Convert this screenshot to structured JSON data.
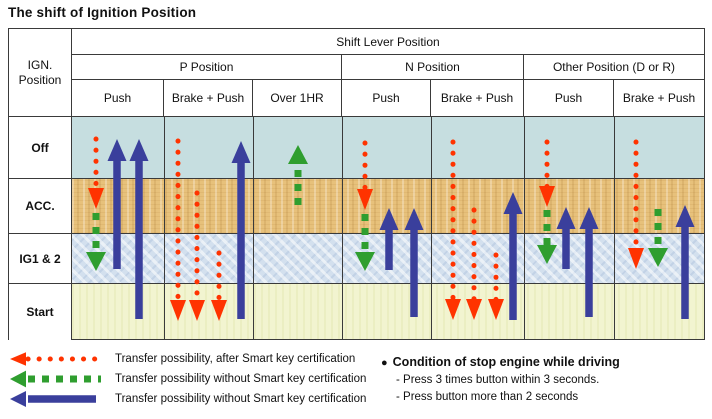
{
  "title": "The shift of Ignition Position",
  "table": {
    "corner": [
      "IGN.",
      "Position"
    ],
    "top_header": "Shift Lever Position",
    "groups": [
      {
        "label": "P Position",
        "subs": [
          "Push",
          "Brake + Push",
          "Over 1HR"
        ]
      },
      {
        "label": "N Position",
        "subs": [
          "Push",
          "Brake + Push"
        ]
      },
      {
        "label": "Other Position (D or R)",
        "subs": [
          "Push",
          "Brake + Push"
        ]
      }
    ],
    "rows": [
      {
        "label": "Off",
        "color": "#c6dee0"
      },
      {
        "label": "ACC.",
        "color": "#e7c17b"
      },
      {
        "label": "IG1 & 2",
        "color": "#d3e0ee"
      },
      {
        "label": "Start",
        "color": "#f2f4d0"
      }
    ]
  },
  "colors": {
    "smart": "#ff3300",
    "no_smart": "#2f9e2f",
    "solid": "#3a3f9c",
    "grid": "#3a3a3a"
  },
  "arrows": [
    {
      "column": "P-Push",
      "items": [
        {
          "kind": "smart",
          "dir": "down",
          "from": "Off",
          "to": "ACC.",
          "x": 24,
          "tail": 22,
          "head": 92
        },
        {
          "kind": "no_smart",
          "dir": "down",
          "from": "ACC.",
          "to": "IG1 & 2",
          "x": 24,
          "tail": 96,
          "head": 154
        },
        {
          "kind": "solid",
          "dir": "up",
          "from": "IG1 & 2",
          "to": "Off",
          "x": 45,
          "tail": 152,
          "head": 22
        },
        {
          "kind": "solid",
          "dir": "up",
          "from": "Start",
          "to": "Off",
          "x": 67,
          "tail": 202,
          "head": 22
        }
      ]
    },
    {
      "column": "P-Brake+Push",
      "items": [
        {
          "kind": "smart",
          "dir": "down",
          "from": "Off",
          "to": "Start",
          "x": 14,
          "tail": 24,
          "head": 204
        },
        {
          "kind": "smart",
          "dir": "down",
          "from": "ACC.",
          "to": "Start",
          "x": 33,
          "tail": 76,
          "head": 204
        },
        {
          "kind": "smart",
          "dir": "down",
          "from": "IG1 & 2",
          "to": "Start",
          "x": 55,
          "tail": 136,
          "head": 204
        },
        {
          "kind": "solid",
          "dir": "up",
          "from": "Start",
          "to": "Off",
          "x": 77,
          "tail": 202,
          "head": 24
        }
      ]
    },
    {
      "column": "P-Over1HR",
      "items": [
        {
          "kind": "no_smart",
          "dir": "up",
          "from": "ACC.",
          "to": "Off",
          "x": 45,
          "tail": 88,
          "head": 28
        }
      ]
    },
    {
      "column": "N-Push",
      "items": [
        {
          "kind": "smart",
          "dir": "down",
          "from": "Off",
          "to": "ACC.",
          "x": 23,
          "tail": 26,
          "head": 93
        },
        {
          "kind": "no_smart",
          "dir": "down",
          "from": "ACC.",
          "to": "IG1 & 2",
          "x": 23,
          "tail": 97,
          "head": 154
        },
        {
          "kind": "solid",
          "dir": "up",
          "from": "IG1 & 2",
          "to": "ACC.",
          "x": 47,
          "tail": 153,
          "head": 91
        },
        {
          "kind": "solid",
          "dir": "up",
          "from": "Start",
          "to": "ACC.",
          "x": 72,
          "tail": 200,
          "head": 91
        }
      ]
    },
    {
      "column": "N-Brake+Push",
      "items": [
        {
          "kind": "smart",
          "dir": "down",
          "from": "Off",
          "to": "Start",
          "x": 22,
          "tail": 25,
          "head": 203
        },
        {
          "kind": "smart",
          "dir": "down",
          "from": "ACC.",
          "to": "Start",
          "x": 43,
          "tail": 93,
          "head": 203
        },
        {
          "kind": "smart",
          "dir": "down",
          "from": "IG1 & 2",
          "to": "Start",
          "x": 65,
          "tail": 138,
          "head": 203
        },
        {
          "kind": "solid",
          "dir": "up",
          "from": "Start",
          "to": "ACC.",
          "x": 82,
          "tail": 203,
          "head": 75
        }
      ]
    },
    {
      "column": "Other-Push",
      "items": [
        {
          "kind": "smart",
          "dir": "down",
          "from": "Off",
          "to": "ACC.",
          "x": 23,
          "tail": 25,
          "head": 90
        },
        {
          "kind": "no_smart",
          "dir": "down",
          "from": "ACC.",
          "to": "IG1 & 2",
          "x": 23,
          "tail": 93,
          "head": 147
        },
        {
          "kind": "solid",
          "dir": "up",
          "from": "IG1 & 2",
          "to": "ACC.",
          "x": 42,
          "tail": 152,
          "head": 90
        },
        {
          "kind": "solid",
          "dir": "up",
          "from": "Start",
          "to": "ACC.",
          "x": 65,
          "tail": 200,
          "head": 90
        }
      ]
    },
    {
      "column": "Other-Brake+Push",
      "items": [
        {
          "kind": "smart",
          "dir": "down",
          "from": "Off",
          "to": "IG1 & 2",
          "x": 22,
          "tail": 25,
          "head": 152
        },
        {
          "kind": "no_smart",
          "dir": "down",
          "from": "ACC.",
          "to": "IG1 & 2",
          "x": 44,
          "tail": 92,
          "head": 150
        },
        {
          "kind": "solid",
          "dir": "up",
          "from": "Start",
          "to": "ACC.",
          "x": 71,
          "tail": 202,
          "head": 88
        }
      ]
    }
  ],
  "legend": [
    {
      "kind": "smart",
      "label": "Transfer possibility, after Smart key certification"
    },
    {
      "kind": "no_smart",
      "label": "Transfer possibility without Smart key certification"
    },
    {
      "kind": "solid",
      "label": "Transfer possibility without Smart key certification"
    }
  ],
  "note": {
    "bullet": "●",
    "title": "Condition of stop engine while driving",
    "items": [
      "- Press 3 times button within 3 seconds.",
      "- Press button more than 2 seconds"
    ]
  }
}
